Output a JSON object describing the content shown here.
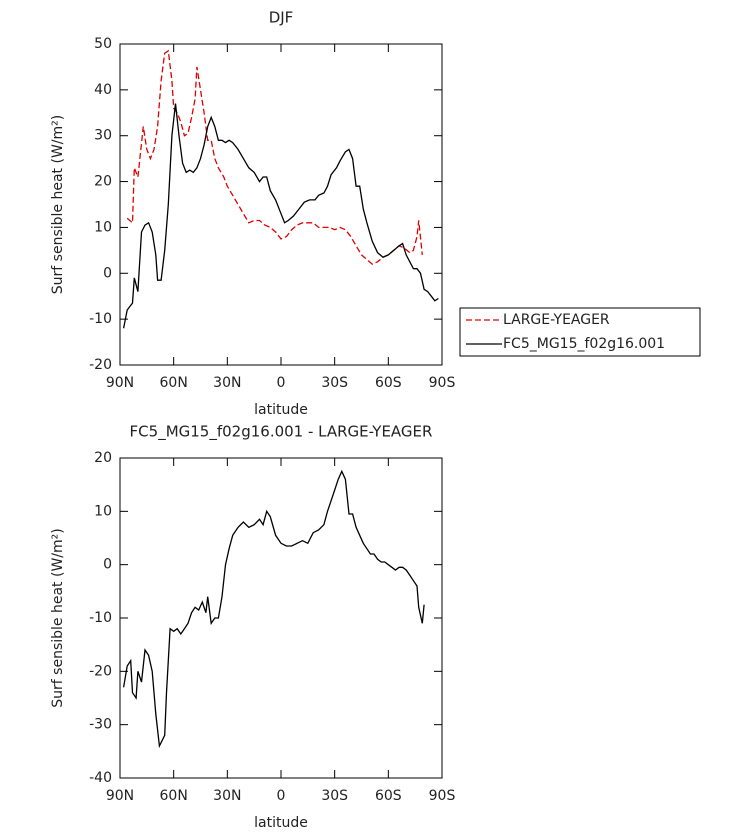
{
  "chart_data": [
    {
      "type": "line",
      "title": "DJF",
      "ylabel": "Surf sensible heat (W/m²)",
      "xlabel": "latitude",
      "xlim": [
        90,
        -90
      ],
      "xticks": [
        {
          "value": 90,
          "label": "90N"
        },
        {
          "value": 60,
          "label": "60N"
        },
        {
          "value": 30,
          "label": "30N"
        },
        0,
        {
          "value": -30,
          "label": "30S"
        },
        {
          "value": -60,
          "label": "60S"
        },
        {
          "value": -90,
          "label": "90S"
        }
      ],
      "ylim": [
        -20,
        50
      ],
      "yticks": [
        -20,
        -10,
        0,
        10,
        20,
        30,
        40,
        50
      ],
      "series": [
        {
          "name": "LARGE-YEAGER",
          "color": "#e00000",
          "linestyle": "dashed",
          "x": [
            86,
            83,
            82,
            80,
            77,
            75,
            73,
            71,
            69,
            67,
            65,
            63,
            61,
            60,
            58,
            56,
            54,
            52,
            50,
            48,
            47,
            45,
            43,
            41,
            39,
            37,
            35,
            32,
            30,
            27,
            24,
            21,
            18,
            15,
            12,
            9,
            6,
            3,
            0,
            -3,
            -6,
            -9,
            -12,
            -15,
            -18,
            -21,
            -24,
            -27,
            -30,
            -33,
            -36,
            -39,
            -42,
            -45,
            -48,
            -51,
            -54,
            -57,
            -60,
            -63,
            -66,
            -69,
            -72,
            -74,
            -76,
            -77,
            -79
          ],
          "values": [
            12,
            11,
            23,
            21,
            32,
            27,
            25,
            27,
            32,
            42,
            48,
            48.5,
            42,
            36,
            35,
            33,
            30,
            30.5,
            34,
            38,
            45,
            40,
            35,
            29,
            29,
            25,
            23,
            21,
            19,
            17,
            15,
            13,
            11,
            11.5,
            11.5,
            10.5,
            10,
            9,
            7.5,
            8,
            9.5,
            10.5,
            11,
            11,
            11,
            10,
            10,
            10,
            9.5,
            10,
            9.5,
            8,
            6,
            4,
            3,
            2,
            2.5,
            3.5,
            4,
            5,
            6,
            5.5,
            4.5,
            5,
            8,
            11.5,
            4
          ]
        },
        {
          "name": "FC5_MG15_f02g16.001",
          "color": "#000000",
          "linestyle": "solid",
          "x": [
            88,
            86,
            84,
            83,
            82,
            80,
            78,
            76,
            74,
            72,
            70,
            69,
            67,
            65,
            63,
            61,
            59,
            57,
            55,
            53,
            51,
            49,
            47,
            45,
            43,
            41,
            39,
            37,
            35,
            33,
            31,
            29,
            27,
            24,
            21,
            18,
            15,
            12,
            10,
            8,
            6,
            3,
            0,
            -2,
            -4,
            -7,
            -10,
            -13,
            -16,
            -19,
            -21,
            -24,
            -26,
            -28,
            -31,
            -33,
            -36,
            -38,
            -40,
            -42,
            -44,
            -46,
            -48,
            -51,
            -54,
            -57,
            -60,
            -63,
            -66,
            -68,
            -70,
            -72,
            -74,
            -76,
            -78,
            -80,
            -82,
            -84,
            -86,
            -88
          ],
          "values": [
            -12,
            -8,
            -7,
            -6.5,
            -1,
            -4,
            9,
            10.5,
            11,
            9,
            4,
            -1.5,
            -1.5,
            5,
            15,
            30,
            37,
            30,
            24,
            22,
            22.5,
            22,
            23,
            25,
            28,
            32,
            34,
            32,
            29,
            29,
            28.5,
            29,
            28.5,
            27,
            25,
            23,
            22,
            20,
            21,
            21,
            18,
            16,
            13,
            11,
            11.5,
            12.5,
            14,
            15.5,
            16,
            16,
            17,
            17.5,
            19,
            21.5,
            23,
            24.5,
            26.5,
            27,
            25,
            19,
            19,
            14,
            11,
            7,
            4.5,
            3.5,
            4,
            5,
            6,
            6.5,
            4,
            2.5,
            1,
            1,
            0,
            -3.5,
            -4,
            -5,
            -6,
            -5.5
          ]
        }
      ]
    },
    {
      "type": "line",
      "title": "FC5_MG15_f02g16.001 - LARGE-YEAGER",
      "ylabel": "Surf sensible heat (W/m²)",
      "xlabel": "latitude",
      "xlim": [
        90,
        -90
      ],
      "xticks": [
        {
          "value": 90,
          "label": "90N"
        },
        {
          "value": 60,
          "label": "60N"
        },
        {
          "value": 30,
          "label": "30N"
        },
        0,
        {
          "value": -30,
          "label": "30S"
        },
        {
          "value": -60,
          "label": "60S"
        },
        {
          "value": -90,
          "label": "90S"
        }
      ],
      "ylim": [
        -40,
        20
      ],
      "yticks": [
        -40,
        -30,
        -20,
        -10,
        0,
        10,
        20
      ],
      "series": [
        {
          "color": "#000000",
          "linestyle": "solid",
          "x": [
            88,
            86,
            84,
            83,
            81,
            80,
            78,
            76,
            74,
            72,
            70,
            68,
            65,
            64,
            62,
            60,
            58,
            56,
            54,
            52,
            50,
            48,
            46,
            44,
            42,
            41,
            39,
            37,
            35,
            33,
            31,
            29,
            27,
            24,
            21,
            18,
            15,
            12,
            10,
            8,
            6,
            3,
            0,
            -3,
            -6,
            -9,
            -12,
            -15,
            -18,
            -21,
            -24,
            -26,
            -28,
            -30,
            -32,
            -34,
            -36,
            -38,
            -40,
            -42,
            -44,
            -46,
            -48,
            -50,
            -52,
            -54,
            -56,
            -58,
            -60,
            -62,
            -64,
            -66,
            -68,
            -70,
            -72,
            -74,
            -76,
            -77,
            -79,
            -80
          ],
          "values": [
            -23,
            -19,
            -18,
            -24,
            -25,
            -20,
            -22,
            -16,
            -17,
            -20,
            -28,
            -34,
            -32,
            -24,
            -12,
            -12.5,
            -12,
            -13,
            -12,
            -11,
            -9,
            -8,
            -8.5,
            -7,
            -9,
            -6,
            -11,
            -10,
            -10,
            -6,
            0,
            3,
            5.5,
            7,
            8,
            7,
            7.5,
            8.5,
            7.5,
            10,
            9,
            5.5,
            4,
            3.5,
            3.5,
            4,
            4.5,
            4,
            6,
            6.5,
            7.5,
            10,
            12,
            14,
            16,
            17.5,
            16,
            9.5,
            9.5,
            7,
            5.5,
            4,
            3,
            2,
            2,
            1,
            0.5,
            0.5,
            0,
            -0.5,
            -1,
            -0.5,
            -0.5,
            -1,
            -2,
            -3,
            -4,
            -8,
            -11,
            -7.5
          ]
        }
      ]
    }
  ]
}
